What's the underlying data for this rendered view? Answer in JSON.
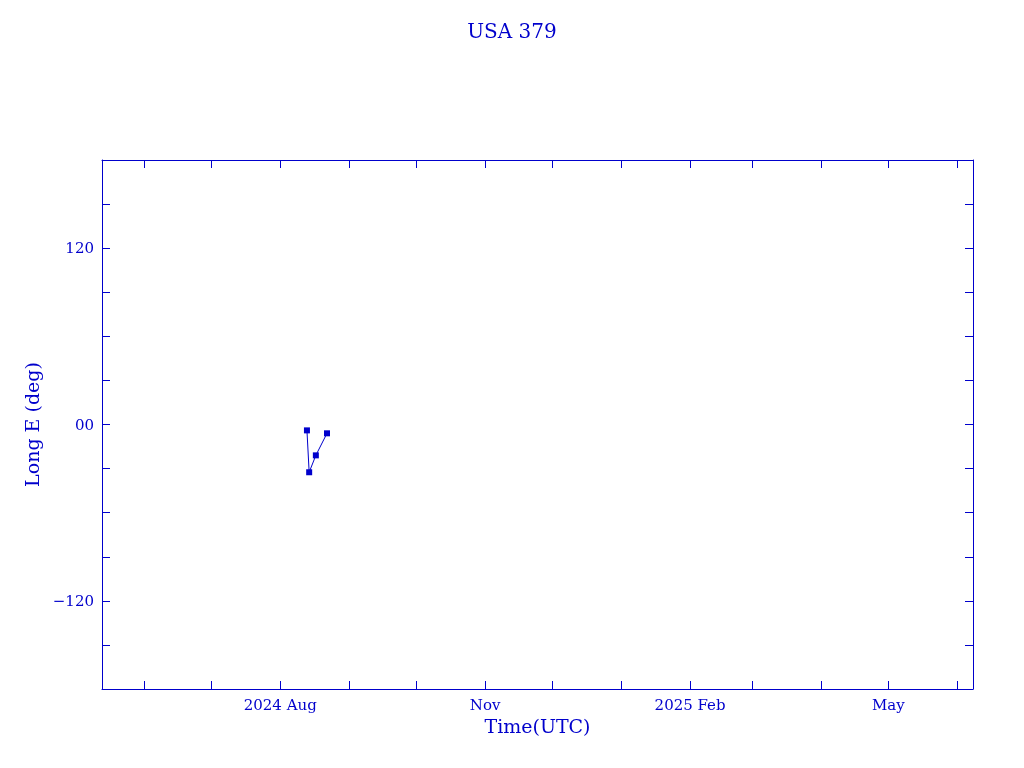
{
  "chart_data": {
    "type": "line",
    "title": "USA 379",
    "xlabel": "Time(UTC)",
    "ylabel": "Long E (deg)",
    "x": [
      "2024-08-13",
      "2024-08-14",
      "2024-08-17",
      "2024-08-22"
    ],
    "series": [
      {
        "color": "#0000cc",
        "values": [
          -4,
          -32.5,
          -21,
          -6
        ]
      }
    ],
    "xlim": [
      "2024-05-13",
      "2025-06-08"
    ],
    "xticks": [
      {
        "value": "2024-06-01",
        "label": null
      },
      {
        "value": "2024-07-01",
        "label": null
      },
      {
        "value": "2024-08-01",
        "label": "2024 Aug"
      },
      {
        "value": "2024-09-01",
        "label": null
      },
      {
        "value": "2024-10-01",
        "label": null
      },
      {
        "value": "2024-11-01",
        "label": "Nov"
      },
      {
        "value": "2024-12-01",
        "label": null
      },
      {
        "value": "2025-01-01",
        "label": null
      },
      {
        "value": "2025-02-01",
        "label": "2025 Feb"
      },
      {
        "value": "2025-03-01",
        "label": null
      },
      {
        "value": "2025-04-01",
        "label": null
      },
      {
        "value": "2025-05-01",
        "label": "May"
      },
      {
        "value": "2025-06-01",
        "label": null
      }
    ],
    "ylim": [
      -180,
      180
    ],
    "yticks": [
      {
        "value": -150,
        "label": null
      },
      {
        "value": -120,
        "label": "−120"
      },
      {
        "value": -90,
        "label": null
      },
      {
        "value": -60,
        "label": null
      },
      {
        "value": -30,
        "label": null
      },
      {
        "value": 0,
        "label": "00"
      },
      {
        "value": 30,
        "label": null
      },
      {
        "value": 60,
        "label": null
      },
      {
        "value": 90,
        "label": null
      },
      {
        "value": 120,
        "label": "120"
      },
      {
        "value": 150,
        "label": null
      }
    ],
    "grid": false,
    "marker": "square",
    "line_style": "solid"
  }
}
